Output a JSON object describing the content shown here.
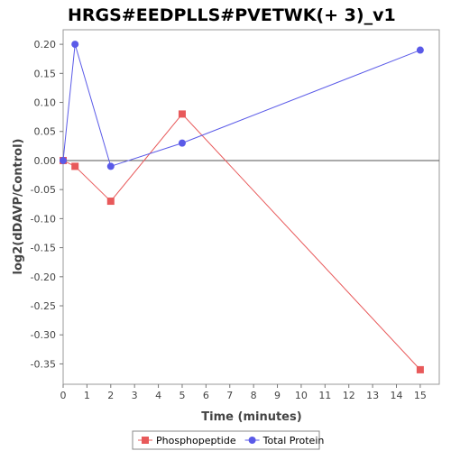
{
  "chart_data": {
    "type": "line",
    "title": "HRGS#EEDPLLS#PVETWK(+ 3)_v1",
    "xlabel": "Time (minutes)",
    "ylabel": "log2(dDAVP/Control)",
    "xlim": [
      0,
      15.8
    ],
    "ylim": [
      -0.385,
      0.225
    ],
    "xticks": [
      0,
      1,
      2,
      3,
      4,
      5,
      6,
      7,
      8,
      9,
      10,
      11,
      12,
      13,
      14,
      15
    ],
    "yticks": [
      -0.35,
      -0.3,
      -0.25,
      -0.2,
      -0.15,
      -0.1,
      -0.05,
      0.0,
      0.05,
      0.1,
      0.15,
      0.2
    ],
    "ytick_labels": [
      "-0.35",
      "-0.30",
      "-0.25",
      "-0.20",
      "-0.15",
      "-0.10",
      "-0.05",
      "0.00",
      "0.05",
      "0.10",
      "0.15",
      "0.20"
    ],
    "grid": false,
    "legend_position": "bottom",
    "series": [
      {
        "name": "Phosphopeptide",
        "color": "#e8595a",
        "marker": "square",
        "x": [
          0,
          0.5,
          2,
          5,
          15
        ],
        "y": [
          0.0,
          -0.01,
          -0.07,
          0.08,
          -0.36
        ]
      },
      {
        "name": "Total Protein",
        "color": "#5a5ae8",
        "marker": "circle",
        "x": [
          0,
          0.5,
          2,
          5,
          15
        ],
        "y": [
          0.0,
          0.2,
          -0.01,
          0.03,
          0.19
        ]
      }
    ]
  }
}
